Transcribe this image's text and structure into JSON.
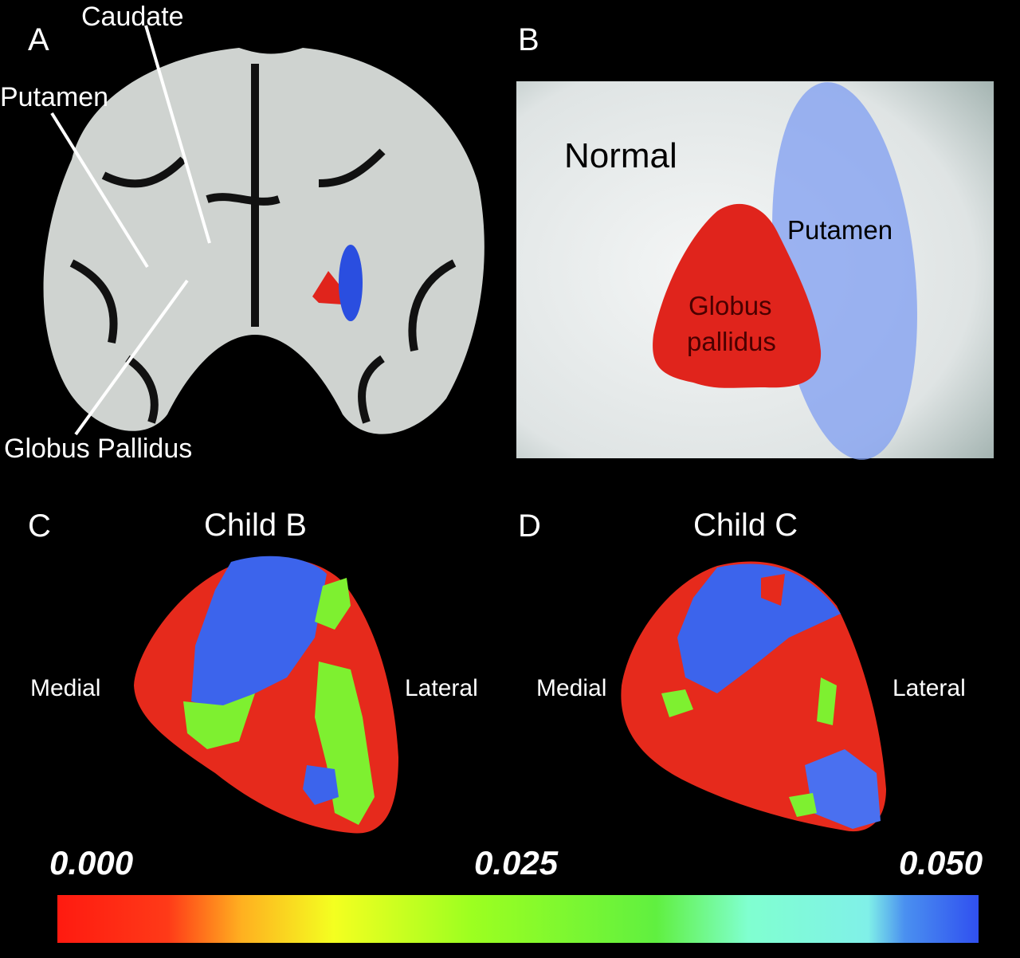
{
  "panel_a": {
    "label": "A",
    "caudate": "Caudate",
    "putamen": "Putamen",
    "globus_pallidus": "Globus Pallidus"
  },
  "panel_b": {
    "label": "B",
    "title": "Normal",
    "putamen": "Putamen",
    "globus_pallidus": [
      "Globus",
      "pallidus"
    ]
  },
  "panel_c": {
    "label": "C",
    "title": "Child B",
    "left": "Medial",
    "right": "Lateral"
  },
  "panel_d": {
    "label": "D",
    "title": "Child C",
    "left": "Medial",
    "right": "Lateral"
  },
  "colorbar": {
    "labels": [
      "0.000",
      "0.025",
      "0.050"
    ]
  }
}
